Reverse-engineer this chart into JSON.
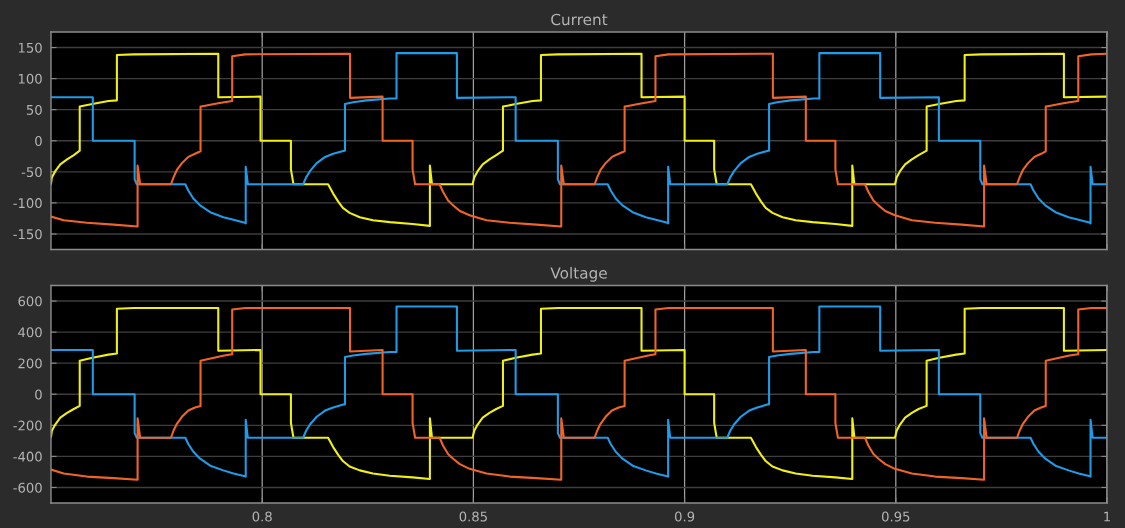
{
  "chart_data": [
    {
      "type": "line",
      "title": "Current",
      "xlim": [
        0.75,
        1
      ],
      "xticks": [
        0.8,
        0.85,
        0.9,
        0.95,
        1
      ],
      "ylim": [
        -175,
        175
      ],
      "yticks": [
        -150,
        -100,
        -50,
        0,
        50,
        100,
        150
      ],
      "grid": true,
      "tick_labels": "y",
      "series": [
        {
          "color": "#f0f014",
          "x": [
            0.75,
            0.7502,
            0.751,
            0.7522,
            0.7538,
            0.7554,
            0.7568,
            0.7568,
            0.7598,
            0.7636,
            0.7656,
            0.7656,
            0.7696,
            0.7896,
            0.7896,
            0.7996,
            0.7996,
            0.8068,
            0.8068,
            0.8074,
            0.8156,
            0.8168,
            0.818,
            0.8191,
            0.8207,
            0.8231,
            0.8262,
            0.8302,
            0.8356,
            0.8397,
            0.8397,
            0.8402,
            0.8498,
            0.8502,
            0.851,
            0.8522,
            0.8538,
            0.8554,
            0.857,
            0.857,
            0.86,
            0.864,
            0.866,
            0.866,
            0.87,
            0.8898,
            0.8898,
            0.9,
            0.9,
            0.907,
            0.907,
            0.9076,
            0.9157,
            0.9169,
            0.9181,
            0.9192,
            0.9208,
            0.9232,
            0.9263,
            0.9303,
            0.9357,
            0.9397,
            0.9397,
            0.9402,
            0.9498,
            0.9502,
            0.951,
            0.9522,
            0.9538,
            0.9554,
            0.9573,
            0.9573,
            0.9603,
            0.9643,
            0.9663,
            0.9663,
            0.9703,
            0.9898,
            0.9898,
            1
          ],
          "values": [
            -69,
            -59,
            -49,
            -38,
            -30,
            -23,
            -16,
            55,
            59,
            64,
            65,
            138,
            139,
            140,
            70,
            71,
            0,
            0,
            -46,
            -70,
            -70,
            -85,
            -98,
            -108,
            -116,
            -123,
            -128,
            -131,
            -134,
            -137,
            -40,
            -70,
            -70,
            -59,
            -49,
            -38,
            -30,
            -23,
            -16,
            55,
            59,
            64,
            65,
            138,
            139,
            140,
            70,
            71,
            0,
            0,
            -46,
            -70,
            -70,
            -85,
            -98,
            -108,
            -116,
            -123,
            -128,
            -131,
            -134,
            -137,
            -40,
            -70,
            -70,
            -59,
            -49,
            -38,
            -30,
            -23,
            -16,
            55,
            59,
            64,
            65,
            138,
            139,
            140,
            70,
            71
          ]
        },
        {
          "color": "#1f9be8",
          "x": [
            0.75,
            0.7599,
            0.7599,
            0.7698,
            0.7698,
            0.7703,
            0.7818,
            0.7825,
            0.7837,
            0.7853,
            0.7877,
            0.7908,
            0.7932,
            0.7959,
            0.7961,
            0.7961,
            0.7966,
            0.8097,
            0.8104,
            0.8113,
            0.8129,
            0.8149,
            0.8168,
            0.8194,
            0.8196,
            0.8196,
            0.8215,
            0.8247,
            0.8302,
            0.8318,
            0.8318,
            0.8461,
            0.8461,
            0.86,
            0.86,
            0.87,
            0.87,
            0.8705,
            0.8818,
            0.8825,
            0.8837,
            0.8853,
            0.8877,
            0.8908,
            0.8932,
            0.8959,
            0.8961,
            0.8961,
            0.8966,
            0.9101,
            0.9108,
            0.9117,
            0.9133,
            0.9153,
            0.9172,
            0.9198,
            0.92,
            0.92,
            0.9219,
            0.9251,
            0.9306,
            0.9319,
            0.9319,
            0.9463,
            0.9463,
            0.9602,
            0.9602,
            0.97,
            0.97,
            0.9705,
            0.9819,
            0.9826,
            0.9838,
            0.9854,
            0.9878,
            0.9909,
            0.9933,
            0.996,
            0.9961,
            0.9961,
            0.9966,
            1
          ],
          "values": [
            70,
            70,
            0,
            0,
            -62,
            -70,
            -70,
            -80,
            -93,
            -104,
            -115,
            -123,
            -127,
            -132,
            -133,
            -42,
            -70,
            -70,
            -59,
            -49,
            -36,
            -26,
            -21,
            -16,
            -16,
            59,
            62,
            65,
            68,
            68,
            141,
            141,
            69,
            70,
            0,
            0,
            -62,
            -70,
            -70,
            -80,
            -93,
            -104,
            -115,
            -123,
            -127,
            -132,
            -133,
            -42,
            -70,
            -70,
            -59,
            -49,
            -36,
            -26,
            -21,
            -16,
            -16,
            59,
            62,
            65,
            68,
            68,
            141,
            141,
            69,
            70,
            0,
            0,
            -62,
            -70,
            -70,
            -80,
            -93,
            -104,
            -115,
            -123,
            -127,
            -132,
            -133,
            -42,
            -70,
            -70
          ]
        },
        {
          "color": "#f06428",
          "x": [
            0.75,
            0.753,
            0.7585,
            0.7648,
            0.7705,
            0.7705,
            0.7711,
            0.7784,
            0.779,
            0.7798,
            0.781,
            0.7825,
            0.7841,
            0.7854,
            0.7854,
            0.7862,
            0.7886,
            0.791,
            0.7929,
            0.7929,
            0.796,
            0.8208,
            0.8208,
            0.8285,
            0.8285,
            0.8356,
            0.8356,
            0.8362,
            0.842,
            0.8428,
            0.844,
            0.8452,
            0.8468,
            0.8491,
            0.8531,
            0.8586,
            0.8649,
            0.8708,
            0.8708,
            0.8714,
            0.8787,
            0.8793,
            0.8801,
            0.8813,
            0.8828,
            0.8844,
            0.8858,
            0.8858,
            0.8866,
            0.889,
            0.8914,
            0.8931,
            0.8931,
            0.8962,
            0.9209,
            0.9209,
            0.9287,
            0.9287,
            0.9357,
            0.9357,
            0.9363,
            0.9427,
            0.9435,
            0.9447,
            0.9459,
            0.9475,
            0.9498,
            0.9538,
            0.9593,
            0.9656,
            0.9709,
            0.9709,
            0.9715,
            0.9787,
            0.9793,
            0.9801,
            0.9813,
            0.9828,
            0.9844,
            0.9855,
            0.9855,
            0.9863,
            0.9887,
            0.9911,
            0.9932,
            0.9932,
            0.9963,
            1
          ],
          "values": [
            -122,
            -128,
            -132,
            -135,
            -138,
            -40,
            -70,
            -70,
            -59,
            -47,
            -36,
            -26,
            -21,
            -17,
            55,
            56,
            59,
            62,
            64,
            136,
            139,
            140,
            69,
            71,
            0,
            0,
            -46,
            -70,
            -70,
            -82,
            -96,
            -104,
            -113,
            -120,
            -128,
            -132,
            -135,
            -138,
            -40,
            -70,
            -70,
            -59,
            -47,
            -36,
            -26,
            -21,
            -17,
            55,
            56,
            59,
            62,
            64,
            136,
            139,
            140,
            69,
            71,
            0,
            0,
            -46,
            -70,
            -70,
            -82,
            -96,
            -104,
            -113,
            -120,
            -128,
            -132,
            -135,
            -138,
            -40,
            -70,
            -70,
            -59,
            -47,
            -36,
            -26,
            -21,
            -17,
            55,
            56,
            59,
            62,
            64,
            136,
            139,
            140
          ]
        }
      ]
    },
    {
      "type": "line",
      "title": "Voltage",
      "xlim": [
        0.75,
        1
      ],
      "xticks": [
        0.8,
        0.85,
        0.9,
        0.95,
        1
      ],
      "ylim": [
        -700,
        700
      ],
      "yticks": [
        -600,
        -400,
        -200,
        0,
        200,
        400,
        600
      ],
      "grid": true,
      "series": [
        {
          "color": "#f0f014",
          "x": [
            0.75,
            0.7502,
            0.751,
            0.7522,
            0.7538,
            0.7554,
            0.7568,
            0.7568,
            0.7598,
            0.7636,
            0.7656,
            0.7656,
            0.7696,
            0.7896,
            0.7896,
            0.7996,
            0.7996,
            0.8068,
            0.8068,
            0.8074,
            0.8156,
            0.8168,
            0.818,
            0.8191,
            0.8207,
            0.8231,
            0.8262,
            0.8302,
            0.8356,
            0.8397,
            0.8397,
            0.8402,
            0.8498,
            0.8502,
            0.851,
            0.8522,
            0.8538,
            0.8554,
            0.857,
            0.857,
            0.86,
            0.864,
            0.866,
            0.866,
            0.87,
            0.8898,
            0.8898,
            0.9,
            0.9,
            0.907,
            0.907,
            0.9076,
            0.9157,
            0.9169,
            0.9181,
            0.9192,
            0.9208,
            0.9232,
            0.9263,
            0.9303,
            0.9357,
            0.9397,
            0.9397,
            0.9402,
            0.9498,
            0.9502,
            0.951,
            0.9522,
            0.9538,
            0.9554,
            0.9573,
            0.9573,
            0.9603,
            0.9643,
            0.9663,
            0.9663,
            0.9703,
            0.9898,
            0.9898,
            1
          ],
          "values": [
            -275,
            -235,
            -195,
            -150,
            -120,
            -95,
            -75,
            215,
            235,
            255,
            262,
            550,
            555,
            555,
            280,
            285,
            0,
            0,
            -185,
            -280,
            -280,
            -340,
            -390,
            -430,
            -465,
            -490,
            -510,
            -525,
            -535,
            -545,
            -155,
            -280,
            -280,
            -235,
            -195,
            -150,
            -120,
            -95,
            -75,
            215,
            235,
            255,
            262,
            550,
            555,
            555,
            280,
            285,
            0,
            0,
            -185,
            -280,
            -280,
            -340,
            -390,
            -430,
            -465,
            -490,
            -510,
            -525,
            -535,
            -545,
            -155,
            -280,
            -280,
            -235,
            -195,
            -150,
            -120,
            -95,
            -75,
            215,
            235,
            255,
            262,
            550,
            555,
            555,
            280,
            285
          ]
        },
        {
          "color": "#1f9be8",
          "x": [
            0.75,
            0.7599,
            0.7599,
            0.7698,
            0.7698,
            0.7703,
            0.7818,
            0.7825,
            0.7837,
            0.7853,
            0.7877,
            0.7908,
            0.7932,
            0.7959,
            0.7961,
            0.7961,
            0.7966,
            0.8097,
            0.8104,
            0.8113,
            0.8129,
            0.8149,
            0.8168,
            0.8194,
            0.8196,
            0.8196,
            0.8215,
            0.8247,
            0.8302,
            0.8318,
            0.8318,
            0.8461,
            0.8461,
            0.86,
            0.86,
            0.87,
            0.87,
            0.8705,
            0.8818,
            0.8825,
            0.8837,
            0.8853,
            0.8877,
            0.8908,
            0.8932,
            0.8959,
            0.8961,
            0.8961,
            0.8966,
            0.9101,
            0.9108,
            0.9117,
            0.9133,
            0.9153,
            0.9172,
            0.9198,
            0.92,
            0.92,
            0.9219,
            0.9251,
            0.9306,
            0.9319,
            0.9319,
            0.9463,
            0.9463,
            0.9602,
            0.9602,
            0.97,
            0.97,
            0.9705,
            0.9819,
            0.9826,
            0.9838,
            0.9854,
            0.9878,
            0.9909,
            0.9933,
            0.996,
            0.9961,
            0.9961,
            0.9966,
            1
          ],
          "values": [
            285,
            285,
            0,
            0,
            -250,
            -280,
            -280,
            -320,
            -370,
            -415,
            -460,
            -490,
            -510,
            -528,
            -530,
            -165,
            -280,
            -280,
            -235,
            -195,
            -145,
            -105,
            -85,
            -65,
            -65,
            240,
            250,
            260,
            272,
            272,
            565,
            565,
            280,
            285,
            0,
            0,
            -250,
            -280,
            -280,
            -320,
            -370,
            -415,
            -460,
            -490,
            -510,
            -528,
            -530,
            -165,
            -280,
            -280,
            -235,
            -195,
            -145,
            -105,
            -85,
            -65,
            -65,
            240,
            250,
            260,
            272,
            272,
            565,
            565,
            280,
            285,
            0,
            0,
            -250,
            -280,
            -280,
            -320,
            -370,
            -415,
            -460,
            -490,
            -510,
            -528,
            -530,
            -165,
            -280,
            -280
          ]
        },
        {
          "color": "#f06428",
          "x": [
            0.75,
            0.753,
            0.7585,
            0.7648,
            0.7705,
            0.7705,
            0.7711,
            0.7784,
            0.779,
            0.7798,
            0.781,
            0.7825,
            0.7841,
            0.7854,
            0.7854,
            0.7862,
            0.7886,
            0.791,
            0.7929,
            0.7929,
            0.796,
            0.8208,
            0.8208,
            0.8285,
            0.8285,
            0.8356,
            0.8356,
            0.8362,
            0.842,
            0.8428,
            0.844,
            0.8452,
            0.8468,
            0.8491,
            0.8531,
            0.8586,
            0.8649,
            0.8708,
            0.8708,
            0.8714,
            0.8787,
            0.8793,
            0.8801,
            0.8813,
            0.8828,
            0.8844,
            0.8858,
            0.8858,
            0.8866,
            0.889,
            0.8914,
            0.8931,
            0.8931,
            0.8962,
            0.9209,
            0.9209,
            0.9287,
            0.9287,
            0.9357,
            0.9357,
            0.9363,
            0.9427,
            0.9435,
            0.9447,
            0.9459,
            0.9475,
            0.9498,
            0.9538,
            0.9593,
            0.9656,
            0.9709,
            0.9709,
            0.9715,
            0.9787,
            0.9793,
            0.9801,
            0.9813,
            0.9828,
            0.9844,
            0.9855,
            0.9855,
            0.9863,
            0.9887,
            0.9911,
            0.9932,
            0.9932,
            0.9963,
            1
          ],
          "values": [
            -485,
            -510,
            -530,
            -540,
            -550,
            -155,
            -280,
            -280,
            -235,
            -190,
            -145,
            -105,
            -85,
            -75,
            215,
            220,
            235,
            250,
            258,
            545,
            555,
            555,
            275,
            285,
            0,
            0,
            -185,
            -280,
            -280,
            -330,
            -385,
            -415,
            -450,
            -480,
            -510,
            -530,
            -540,
            -550,
            -155,
            -280,
            -280,
            -235,
            -190,
            -145,
            -105,
            -85,
            -75,
            215,
            220,
            235,
            250,
            258,
            545,
            555,
            555,
            275,
            285,
            0,
            0,
            -185,
            -280,
            -280,
            -330,
            -385,
            -415,
            -450,
            -480,
            -510,
            -530,
            -540,
            -550,
            -155,
            -280,
            -280,
            -235,
            -190,
            -145,
            -105,
            -85,
            -75,
            215,
            220,
            235,
            250,
            258,
            545,
            555,
            555
          ]
        }
      ]
    }
  ]
}
